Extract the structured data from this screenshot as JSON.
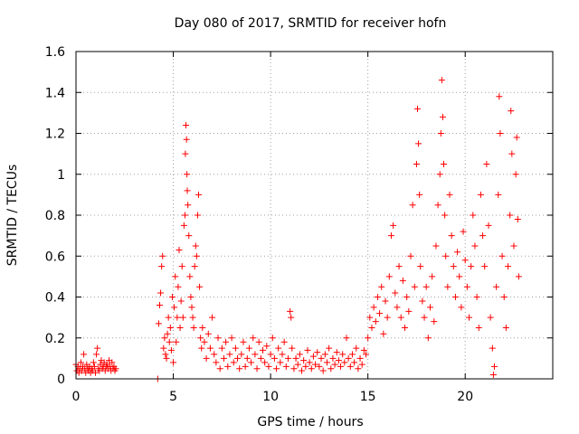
{
  "chart_data": {
    "type": "scatter",
    "title": "Day 080 of 2017, SRMTID for receiver hofn",
    "xlabel": "GPS time / hours",
    "ylabel": "SRMTID / TECUs",
    "xlim": [
      0,
      24.5
    ],
    "ylim": [
      0,
      1.6
    ],
    "xticks": [
      0,
      5,
      10,
      15,
      20
    ],
    "yticks": [
      0,
      0.2,
      0.4,
      0.6,
      0.8,
      1,
      1.2,
      1.4,
      1.6
    ],
    "xtick_labels": [
      "0",
      "5",
      "10",
      "15",
      "20"
    ],
    "ytick_labels": [
      "0",
      "0.2",
      "0.4",
      "0.6",
      "0.8",
      "1",
      "1.2",
      "1.4",
      "1.6"
    ],
    "grid": true,
    "marker": "+",
    "color": "#ff0000",
    "series": [
      {
        "name": "SRMTID",
        "points": [
          [
            0.0,
            0.07
          ],
          [
            0.05,
            0.04
          ],
          [
            0.1,
            0.06
          ],
          [
            0.15,
            0.03
          ],
          [
            0.2,
            0.05
          ],
          [
            0.25,
            0.08
          ],
          [
            0.3,
            0.04
          ],
          [
            0.35,
            0.06
          ],
          [
            0.4,
            0.12
          ],
          [
            0.45,
            0.05
          ],
          [
            0.5,
            0.03
          ],
          [
            0.55,
            0.07
          ],
          [
            0.6,
            0.05
          ],
          [
            0.65,
            0.04
          ],
          [
            0.7,
            0.06
          ],
          [
            0.75,
            0.03
          ],
          [
            0.8,
            0.05
          ],
          [
            0.85,
            0.04
          ],
          [
            0.9,
            0.08
          ],
          [
            0.95,
            0.06
          ],
          [
            1.0,
            0.03
          ],
          [
            1.05,
            0.12
          ],
          [
            1.1,
            0.15
          ],
          [
            1.15,
            0.05
          ],
          [
            1.2,
            0.04
          ],
          [
            1.25,
            0.07
          ],
          [
            1.3,
            0.09
          ],
          [
            1.35,
            0.05
          ],
          [
            1.4,
            0.06
          ],
          [
            1.45,
            0.08
          ],
          [
            1.5,
            0.04
          ],
          [
            1.55,
            0.06
          ],
          [
            1.6,
            0.07
          ],
          [
            1.65,
            0.05
          ],
          [
            1.7,
            0.09
          ],
          [
            1.75,
            0.06
          ],
          [
            1.8,
            0.04
          ],
          [
            1.85,
            0.08
          ],
          [
            1.9,
            0.05
          ],
          [
            1.95,
            0.06
          ],
          [
            2.0,
            0.04
          ],
          [
            2.05,
            0.05
          ],
          [
            4.2,
            0.0
          ],
          [
            4.25,
            0.27
          ],
          [
            4.3,
            0.36
          ],
          [
            4.35,
            0.42
          ],
          [
            4.4,
            0.55
          ],
          [
            4.45,
            0.6
          ],
          [
            4.5,
            0.15
          ],
          [
            4.55,
            0.2
          ],
          [
            4.6,
            0.12
          ],
          [
            4.65,
            0.1
          ],
          [
            4.7,
            0.22
          ],
          [
            4.75,
            0.3
          ],
          [
            4.8,
            0.18
          ],
          [
            4.85,
            0.25
          ],
          [
            4.9,
            0.14
          ],
          [
            4.95,
            0.4
          ],
          [
            5.0,
            0.08
          ],
          [
            5.05,
            0.35
          ],
          [
            5.1,
            0.5
          ],
          [
            5.15,
            0.18
          ],
          [
            5.2,
            0.3
          ],
          [
            5.25,
            0.45
          ],
          [
            5.3,
            0.63
          ],
          [
            5.35,
            0.25
          ],
          [
            5.4,
            0.38
          ],
          [
            5.45,
            0.55
          ],
          [
            5.5,
            0.3
          ],
          [
            5.55,
            0.75
          ],
          [
            5.6,
            0.8
          ],
          [
            5.62,
            1.1
          ],
          [
            5.65,
            1.24
          ],
          [
            5.68,
            1.17
          ],
          [
            5.7,
            1.0
          ],
          [
            5.72,
            0.92
          ],
          [
            5.75,
            0.85
          ],
          [
            5.8,
            0.7
          ],
          [
            5.85,
            0.5
          ],
          [
            5.9,
            0.4
          ],
          [
            5.95,
            0.35
          ],
          [
            6.0,
            0.3
          ],
          [
            6.05,
            0.25
          ],
          [
            6.1,
            0.55
          ],
          [
            6.15,
            0.65
          ],
          [
            6.2,
            0.6
          ],
          [
            6.25,
            0.8
          ],
          [
            6.3,
            0.9
          ],
          [
            6.35,
            0.45
          ],
          [
            6.4,
            0.2
          ],
          [
            6.45,
            0.15
          ],
          [
            6.5,
            0.25
          ],
          [
            6.6,
            0.18
          ],
          [
            6.7,
            0.1
          ],
          [
            6.8,
            0.22
          ],
          [
            6.9,
            0.15
          ],
          [
            7.0,
            0.3
          ],
          [
            7.1,
            0.12
          ],
          [
            7.2,
            0.08
          ],
          [
            7.3,
            0.2
          ],
          [
            7.4,
            0.05
          ],
          [
            7.5,
            0.15
          ],
          [
            7.6,
            0.1
          ],
          [
            7.7,
            0.18
          ],
          [
            7.8,
            0.06
          ],
          [
            7.9,
            0.12
          ],
          [
            8.0,
            0.2
          ],
          [
            8.1,
            0.08
          ],
          [
            8.2,
            0.15
          ],
          [
            8.3,
            0.1
          ],
          [
            8.4,
            0.05
          ],
          [
            8.5,
            0.12
          ],
          [
            8.6,
            0.18
          ],
          [
            8.7,
            0.06
          ],
          [
            8.8,
            0.1
          ],
          [
            8.9,
            0.15
          ],
          [
            9.0,
            0.08
          ],
          [
            9.1,
            0.2
          ],
          [
            9.2,
            0.12
          ],
          [
            9.3,
            0.05
          ],
          [
            9.4,
            0.18
          ],
          [
            9.5,
            0.1
          ],
          [
            9.6,
            0.14
          ],
          [
            9.7,
            0.08
          ],
          [
            9.8,
            0.16
          ],
          [
            9.9,
            0.06
          ],
          [
            10.0,
            0.12
          ],
          [
            10.1,
            0.2
          ],
          [
            10.2,
            0.1
          ],
          [
            10.3,
            0.05
          ],
          [
            10.4,
            0.15
          ],
          [
            10.5,
            0.08
          ],
          [
            10.6,
            0.12
          ],
          [
            10.7,
            0.18
          ],
          [
            10.8,
            0.06
          ],
          [
            10.9,
            0.1
          ],
          [
            11.0,
            0.33
          ],
          [
            11.05,
            0.3
          ],
          [
            11.1,
            0.15
          ],
          [
            11.2,
            0.05
          ],
          [
            11.3,
            0.1
          ],
          [
            11.4,
            0.07
          ],
          [
            11.5,
            0.12
          ],
          [
            11.6,
            0.04
          ],
          [
            11.7,
            0.09
          ],
          [
            11.8,
            0.06
          ],
          [
            11.9,
            0.14
          ],
          [
            12.0,
            0.08
          ],
          [
            12.1,
            0.05
          ],
          [
            12.2,
            0.11
          ],
          [
            12.3,
            0.07
          ],
          [
            12.4,
            0.13
          ],
          [
            12.5,
            0.06
          ],
          [
            12.6,
            0.1
          ],
          [
            12.7,
            0.04
          ],
          [
            12.8,
            0.12
          ],
          [
            12.9,
            0.08
          ],
          [
            13.0,
            0.15
          ],
          [
            13.1,
            0.05
          ],
          [
            13.2,
            0.1
          ],
          [
            13.3,
            0.07
          ],
          [
            13.4,
            0.13
          ],
          [
            13.5,
            0.09
          ],
          [
            13.6,
            0.06
          ],
          [
            13.7,
            0.12
          ],
          [
            13.8,
            0.08
          ],
          [
            13.9,
            0.2
          ],
          [
            14.0,
            0.1
          ],
          [
            14.1,
            0.06
          ],
          [
            14.2,
            0.12
          ],
          [
            14.3,
            0.08
          ],
          [
            14.4,
            0.15
          ],
          [
            14.5,
            0.05
          ],
          [
            14.6,
            0.1
          ],
          [
            14.7,
            0.07
          ],
          [
            14.8,
            0.14
          ],
          [
            14.9,
            0.12
          ],
          [
            15.0,
            0.2
          ],
          [
            15.1,
            0.3
          ],
          [
            15.2,
            0.25
          ],
          [
            15.3,
            0.35
          ],
          [
            15.4,
            0.28
          ],
          [
            15.5,
            0.4
          ],
          [
            15.6,
            0.32
          ],
          [
            15.7,
            0.45
          ],
          [
            15.8,
            0.22
          ],
          [
            15.9,
            0.38
          ],
          [
            16.0,
            0.3
          ],
          [
            16.1,
            0.5
          ],
          [
            16.2,
            0.7
          ],
          [
            16.3,
            0.75
          ],
          [
            16.4,
            0.42
          ],
          [
            16.5,
            0.35
          ],
          [
            16.6,
            0.55
          ],
          [
            16.7,
            0.3
          ],
          [
            16.8,
            0.48
          ],
          [
            16.9,
            0.25
          ],
          [
            17.0,
            0.4
          ],
          [
            17.1,
            0.33
          ],
          [
            17.2,
            0.6
          ],
          [
            17.3,
            0.85
          ],
          [
            17.4,
            0.45
          ],
          [
            17.5,
            1.05
          ],
          [
            17.55,
            1.32
          ],
          [
            17.6,
            1.15
          ],
          [
            17.65,
            0.9
          ],
          [
            17.7,
            0.55
          ],
          [
            17.8,
            0.38
          ],
          [
            17.9,
            0.3
          ],
          [
            18.0,
            0.45
          ],
          [
            18.1,
            0.2
          ],
          [
            18.2,
            0.35
          ],
          [
            18.3,
            0.5
          ],
          [
            18.4,
            0.28
          ],
          [
            18.5,
            0.65
          ],
          [
            18.6,
            0.85
          ],
          [
            18.7,
            1.0
          ],
          [
            18.75,
            1.2
          ],
          [
            18.8,
            1.46
          ],
          [
            18.85,
            1.28
          ],
          [
            18.9,
            1.05
          ],
          [
            18.95,
            0.8
          ],
          [
            19.0,
            0.6
          ],
          [
            19.1,
            0.45
          ],
          [
            19.2,
            0.9
          ],
          [
            19.3,
            0.7
          ],
          [
            19.4,
            0.55
          ],
          [
            19.5,
            0.4
          ],
          [
            19.6,
            0.62
          ],
          [
            19.7,
            0.5
          ],
          [
            19.8,
            0.35
          ],
          [
            19.9,
            0.72
          ],
          [
            20.0,
            0.58
          ],
          [
            20.1,
            0.45
          ],
          [
            20.2,
            0.3
          ],
          [
            20.3,
            0.55
          ],
          [
            20.4,
            0.8
          ],
          [
            20.5,
            0.65
          ],
          [
            20.6,
            0.4
          ],
          [
            20.7,
            0.25
          ],
          [
            20.8,
            0.9
          ],
          [
            20.9,
            0.7
          ],
          [
            21.0,
            0.55
          ],
          [
            21.1,
            1.05
          ],
          [
            21.2,
            0.75
          ],
          [
            21.3,
            0.3
          ],
          [
            21.4,
            0.15
          ],
          [
            21.45,
            0.02
          ],
          [
            21.5,
            0.06
          ],
          [
            21.6,
            0.45
          ],
          [
            21.7,
            0.9
          ],
          [
            21.75,
            1.38
          ],
          [
            21.8,
            1.2
          ],
          [
            21.9,
            0.6
          ],
          [
            22.0,
            0.4
          ],
          [
            22.1,
            0.25
          ],
          [
            22.2,
            0.55
          ],
          [
            22.3,
            0.8
          ],
          [
            22.35,
            1.31
          ],
          [
            22.4,
            1.1
          ],
          [
            22.5,
            0.65
          ],
          [
            22.6,
            1.0
          ],
          [
            22.65,
            1.18
          ],
          [
            22.7,
            0.78
          ],
          [
            22.75,
            0.5
          ]
        ]
      }
    ]
  }
}
